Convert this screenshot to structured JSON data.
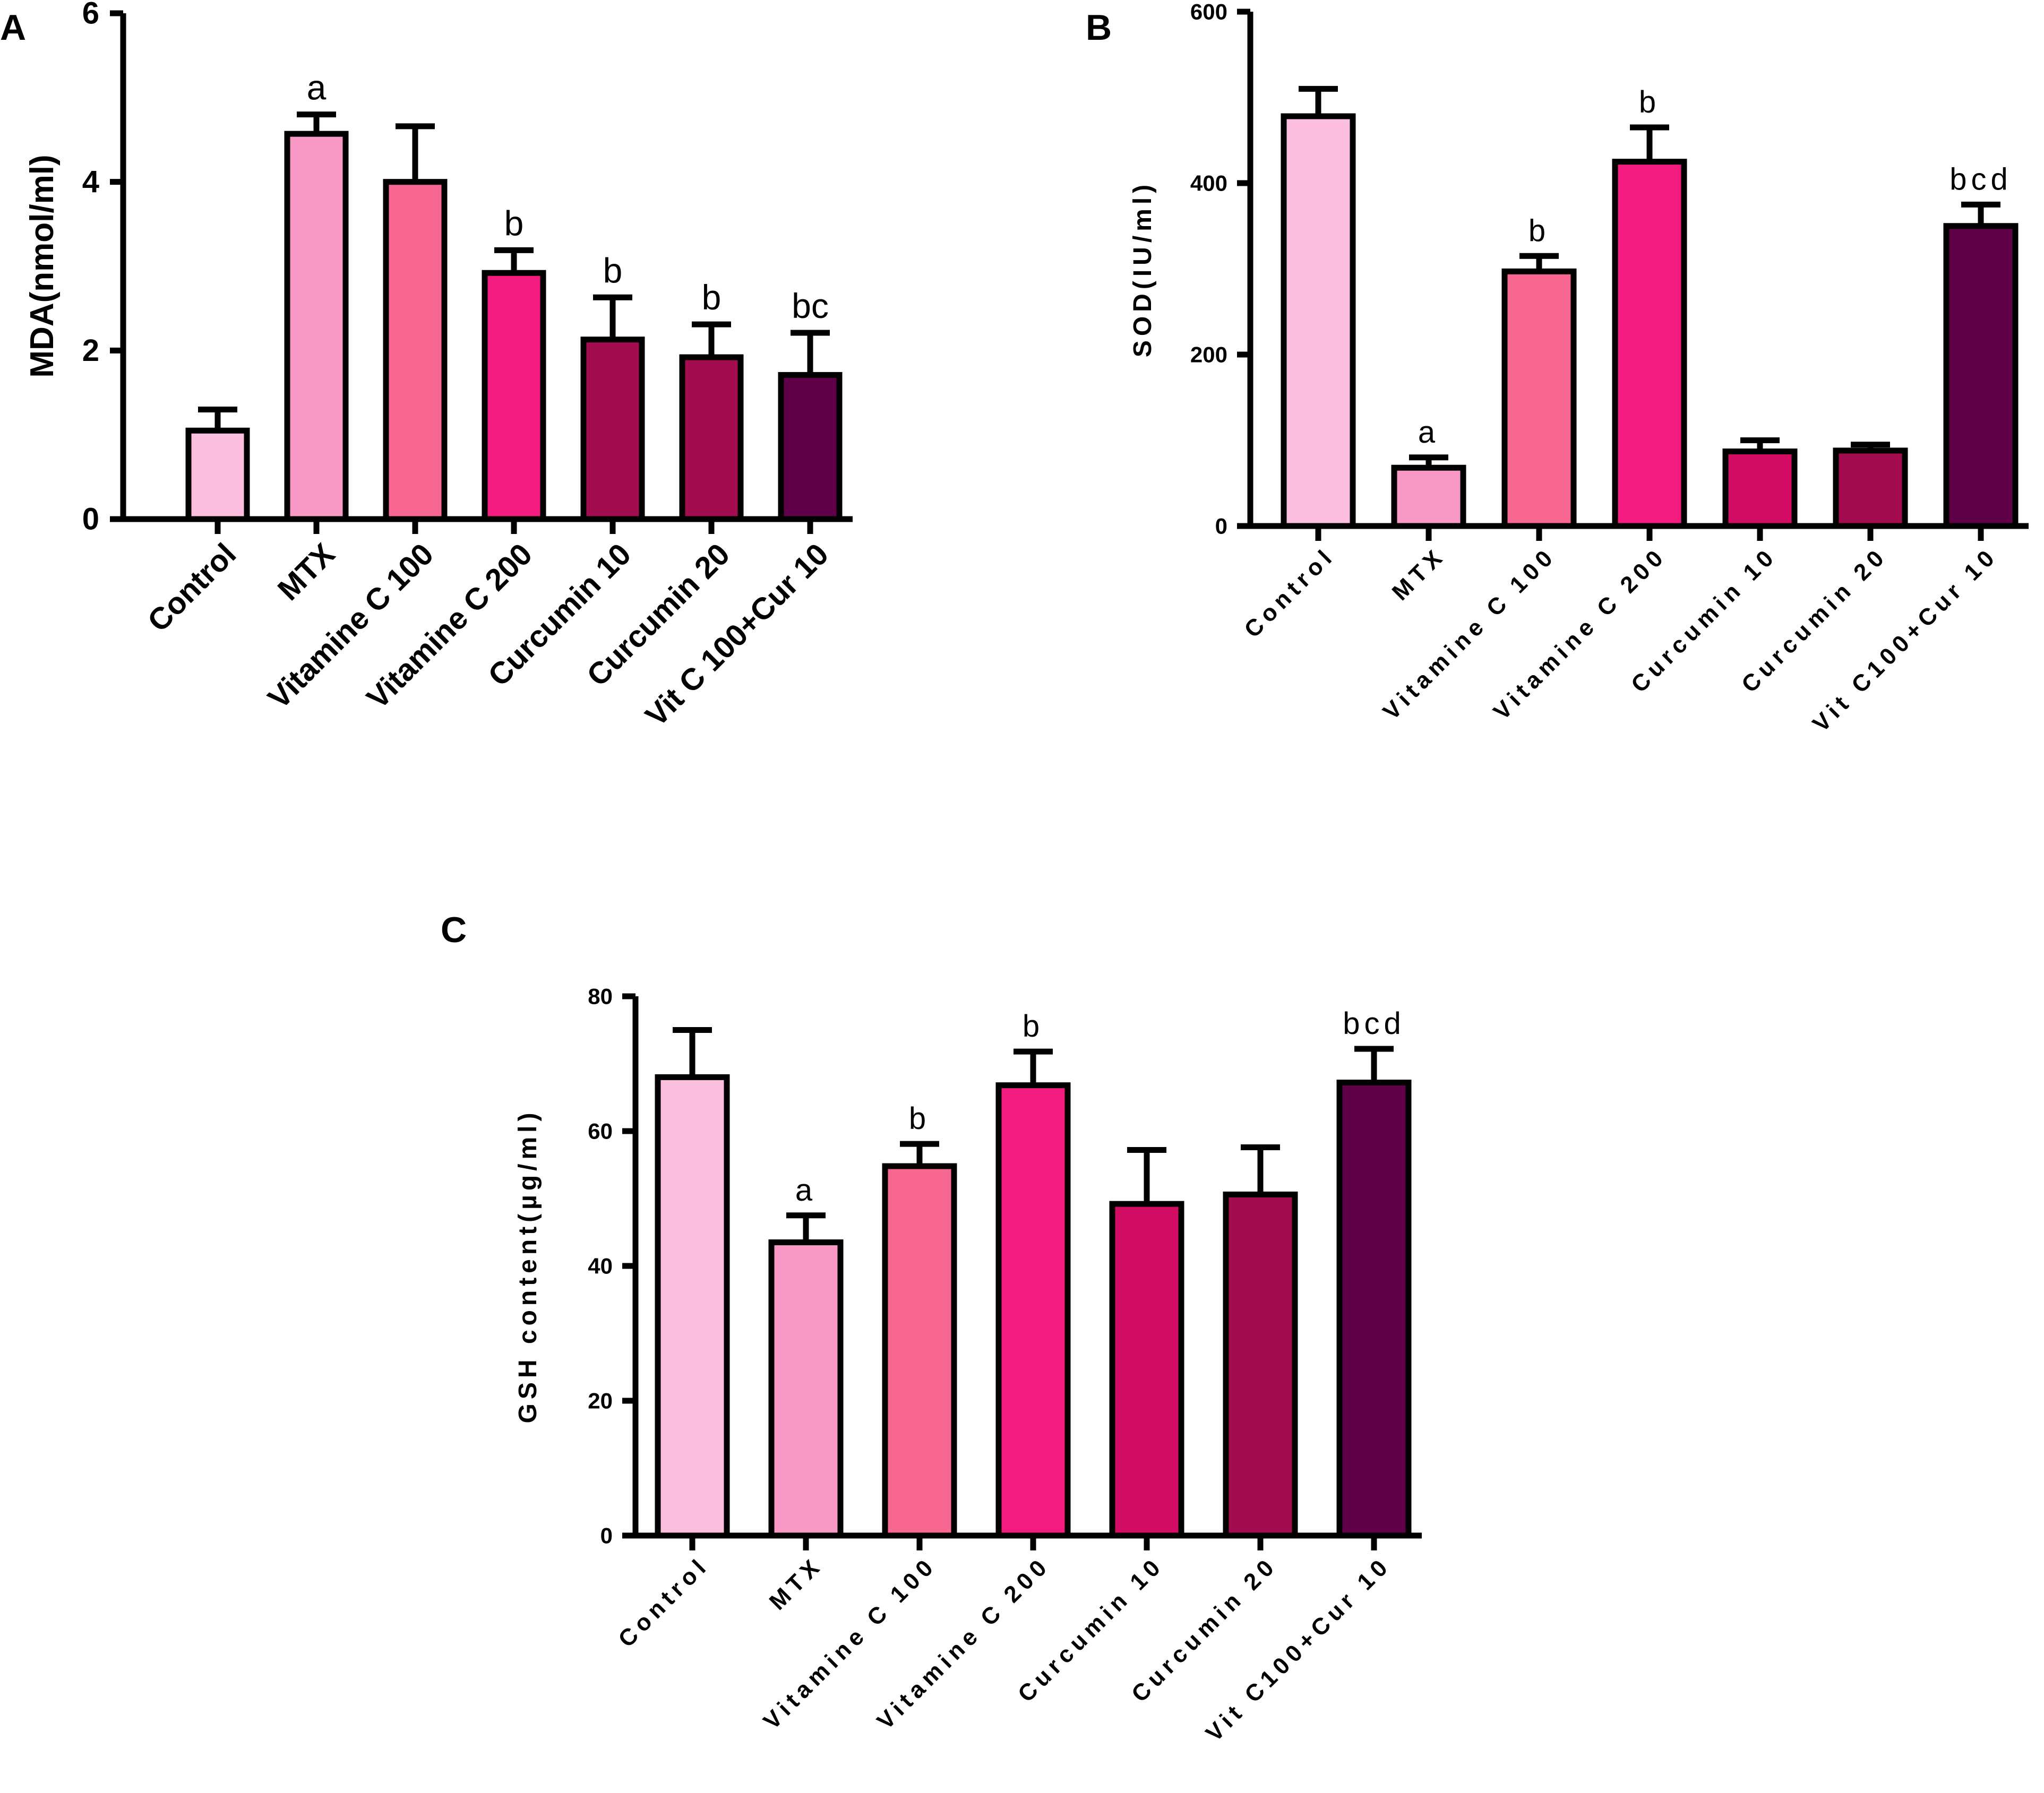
{
  "chart_data": [
    {
      "panel": "A",
      "type": "bar",
      "title": "",
      "xlabel": "",
      "ylabel": "MDA(nmol/ml)",
      "ylim": [
        0,
        6
      ],
      "yticks": [
        0,
        2,
        4,
        6
      ],
      "grid": false,
      "categories": [
        "Control",
        "MTX",
        "Vitamine C 100",
        "Vitamine C 200",
        "Curcumin 10",
        "Curcumin 20",
        "Vit C 100+Cur 10"
      ],
      "values": [
        1.05,
        4.57,
        4.0,
        2.92,
        2.13,
        1.92,
        1.71
      ],
      "errors": [
        0.25,
        0.23,
        0.66,
        0.27,
        0.5,
        0.39,
        0.5
      ],
      "annotations": [
        "",
        "a",
        "",
        "b",
        "b",
        "b",
        "bc"
      ],
      "colors": [
        "#fdbfdf",
        "#f799c4",
        "#f76792",
        "#f41b7f",
        "#a30c4f",
        "#a30c4f",
        "#600048"
      ]
    },
    {
      "panel": "B",
      "type": "bar",
      "title": "",
      "xlabel": "",
      "ylabel": "SOD(IU/ml)",
      "ylim": [
        0,
        600
      ],
      "yticks": [
        0,
        200,
        400,
        600
      ],
      "grid": false,
      "categories": [
        "Control",
        "MTX",
        "Vitamine C 100",
        "Vitamine C 200",
        "Curcumin 10",
        "Curcumin 20",
        "Vit C100+Cur 10"
      ],
      "values": [
        478,
        68,
        297,
        425,
        87,
        88,
        350
      ],
      "errors": [
        32,
        12,
        18,
        40,
        13,
        7,
        25
      ],
      "annotations": [
        "",
        "a",
        "b",
        "b",
        "",
        "",
        "bcd"
      ],
      "colors": [
        "#fdbfdf",
        "#f799c4",
        "#f76792",
        "#f41b7f",
        "#d40d64",
        "#a30c4f",
        "#600048"
      ]
    },
    {
      "panel": "C",
      "type": "bar",
      "title": "",
      "xlabel": "",
      "ylabel": "GSH content(µg/ml)",
      "ylim": [
        0,
        80
      ],
      "yticks": [
        0,
        20,
        40,
        60,
        80
      ],
      "grid": false,
      "categories": [
        "Control",
        "MTX",
        "Vitamine C 100",
        "Vitamine C 200",
        "Curcumin 10",
        "Curcumin 20",
        "Vit C100+Cur 10"
      ],
      "values": [
        68,
        43.5,
        54.8,
        66.8,
        49.2,
        50.6,
        67.2
      ],
      "errors": [
        7,
        4,
        3.3,
        5,
        8,
        7,
        5
      ],
      "annotations": [
        "",
        "a",
        "b",
        "b",
        "",
        "",
        "bcd"
      ],
      "colors": [
        "#fdbfdf",
        "#f799c4",
        "#f76792",
        "#f41b7f",
        "#d40d64",
        "#a30c4f",
        "#600048"
      ]
    }
  ]
}
